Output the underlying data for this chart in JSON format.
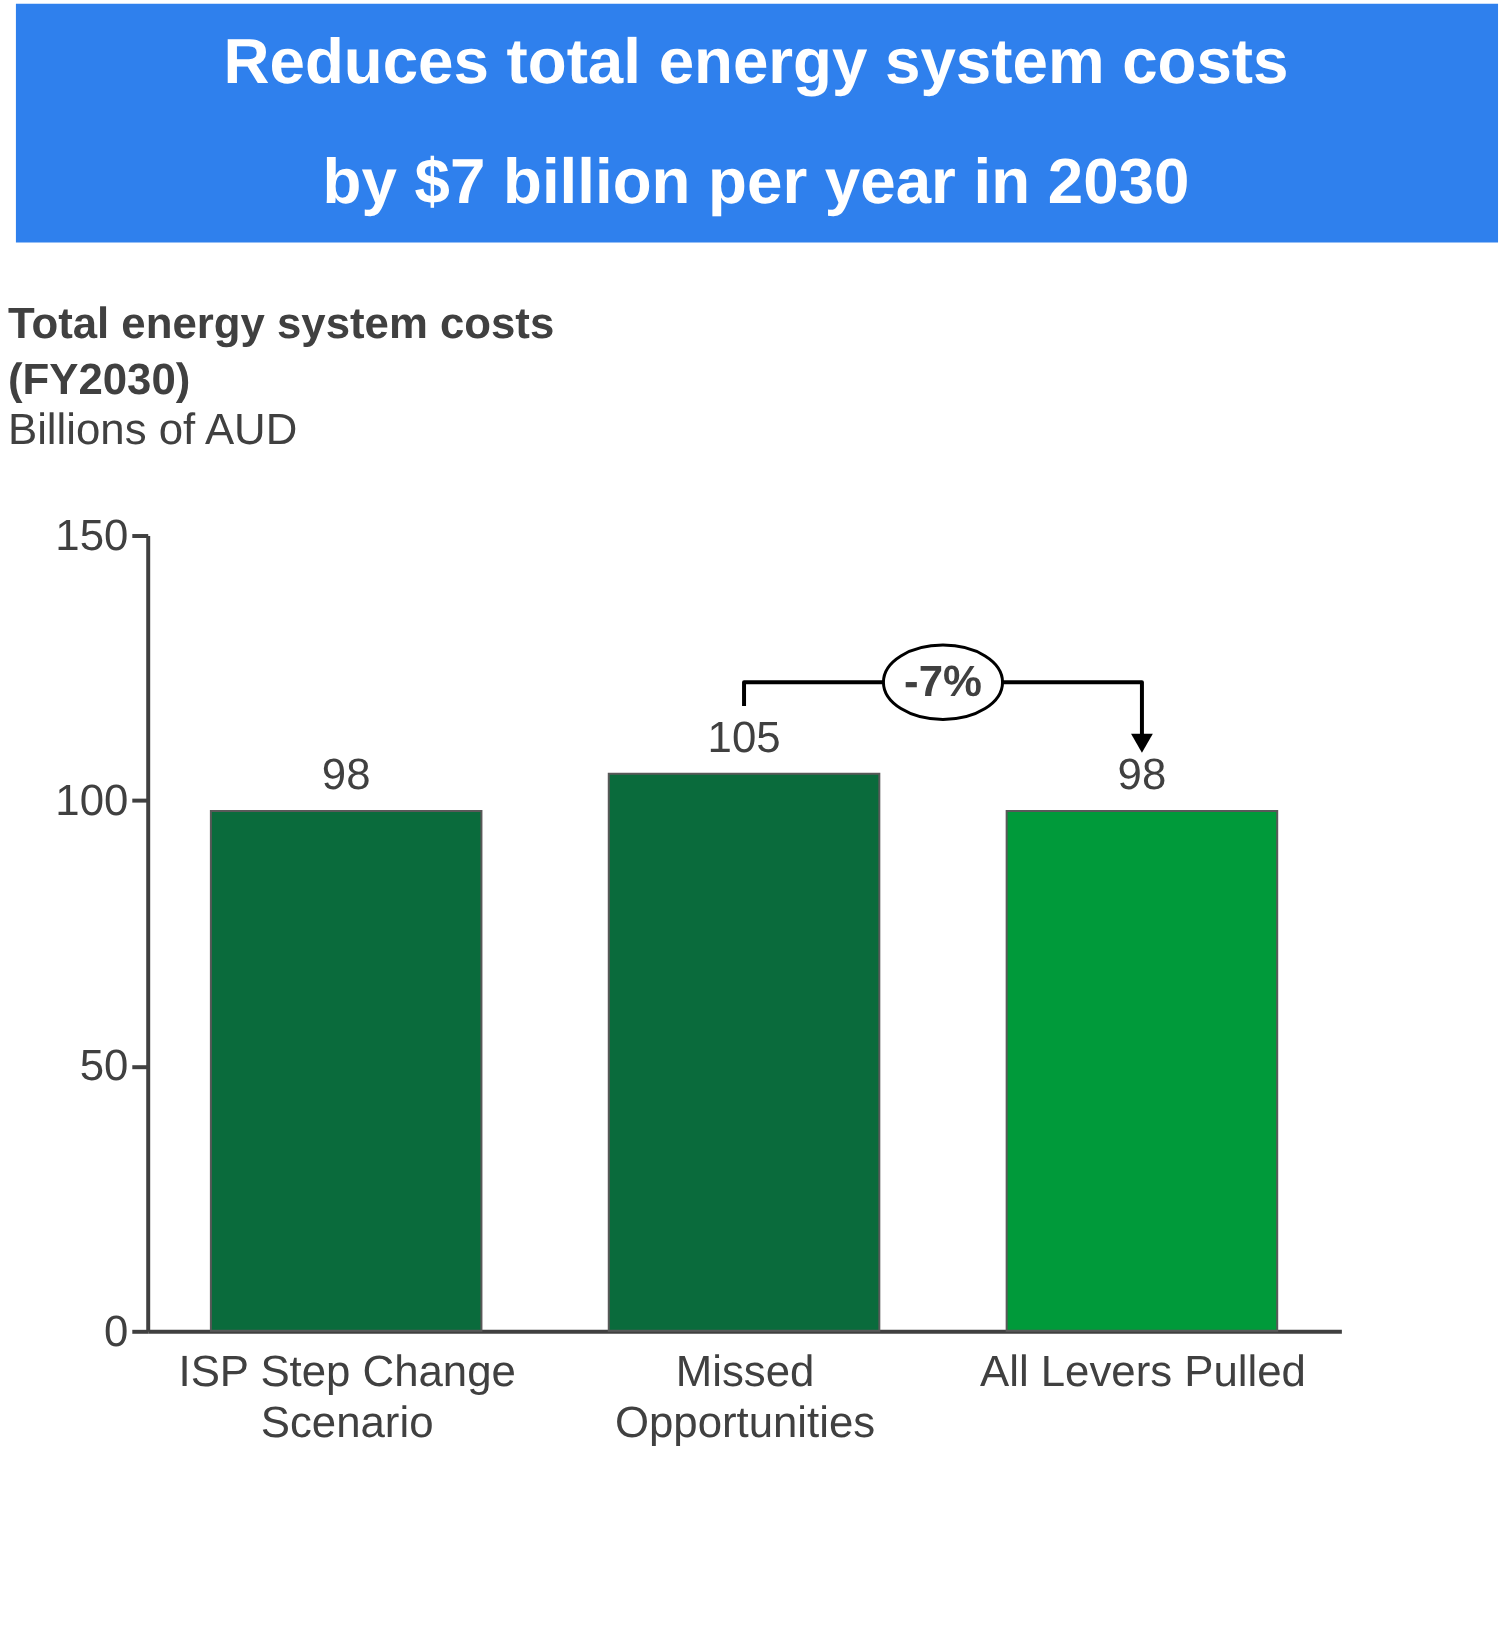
{
  "chart_data": {
    "type": "bar",
    "title": "Reduces total energy system costs\nby $7 billion per year in 2030",
    "subtitle": "Total energy system costs\n(FY2030)",
    "ylabel": "Billions of AUD",
    "categories": [
      "ISP Step Change\nScenario",
      "Missed\nOpportunities",
      "All Levers Pulled"
    ],
    "values": [
      98,
      105,
      98
    ],
    "colors": [
      "#0a6b3c",
      "#0a6b3c",
      "#009a3a"
    ],
    "ylim": [
      0,
      150
    ],
    "yticks": [
      0,
      50,
      100,
      150
    ],
    "data_labels": true,
    "grid": false,
    "annotations": [
      "-7%"
    ]
  }
}
